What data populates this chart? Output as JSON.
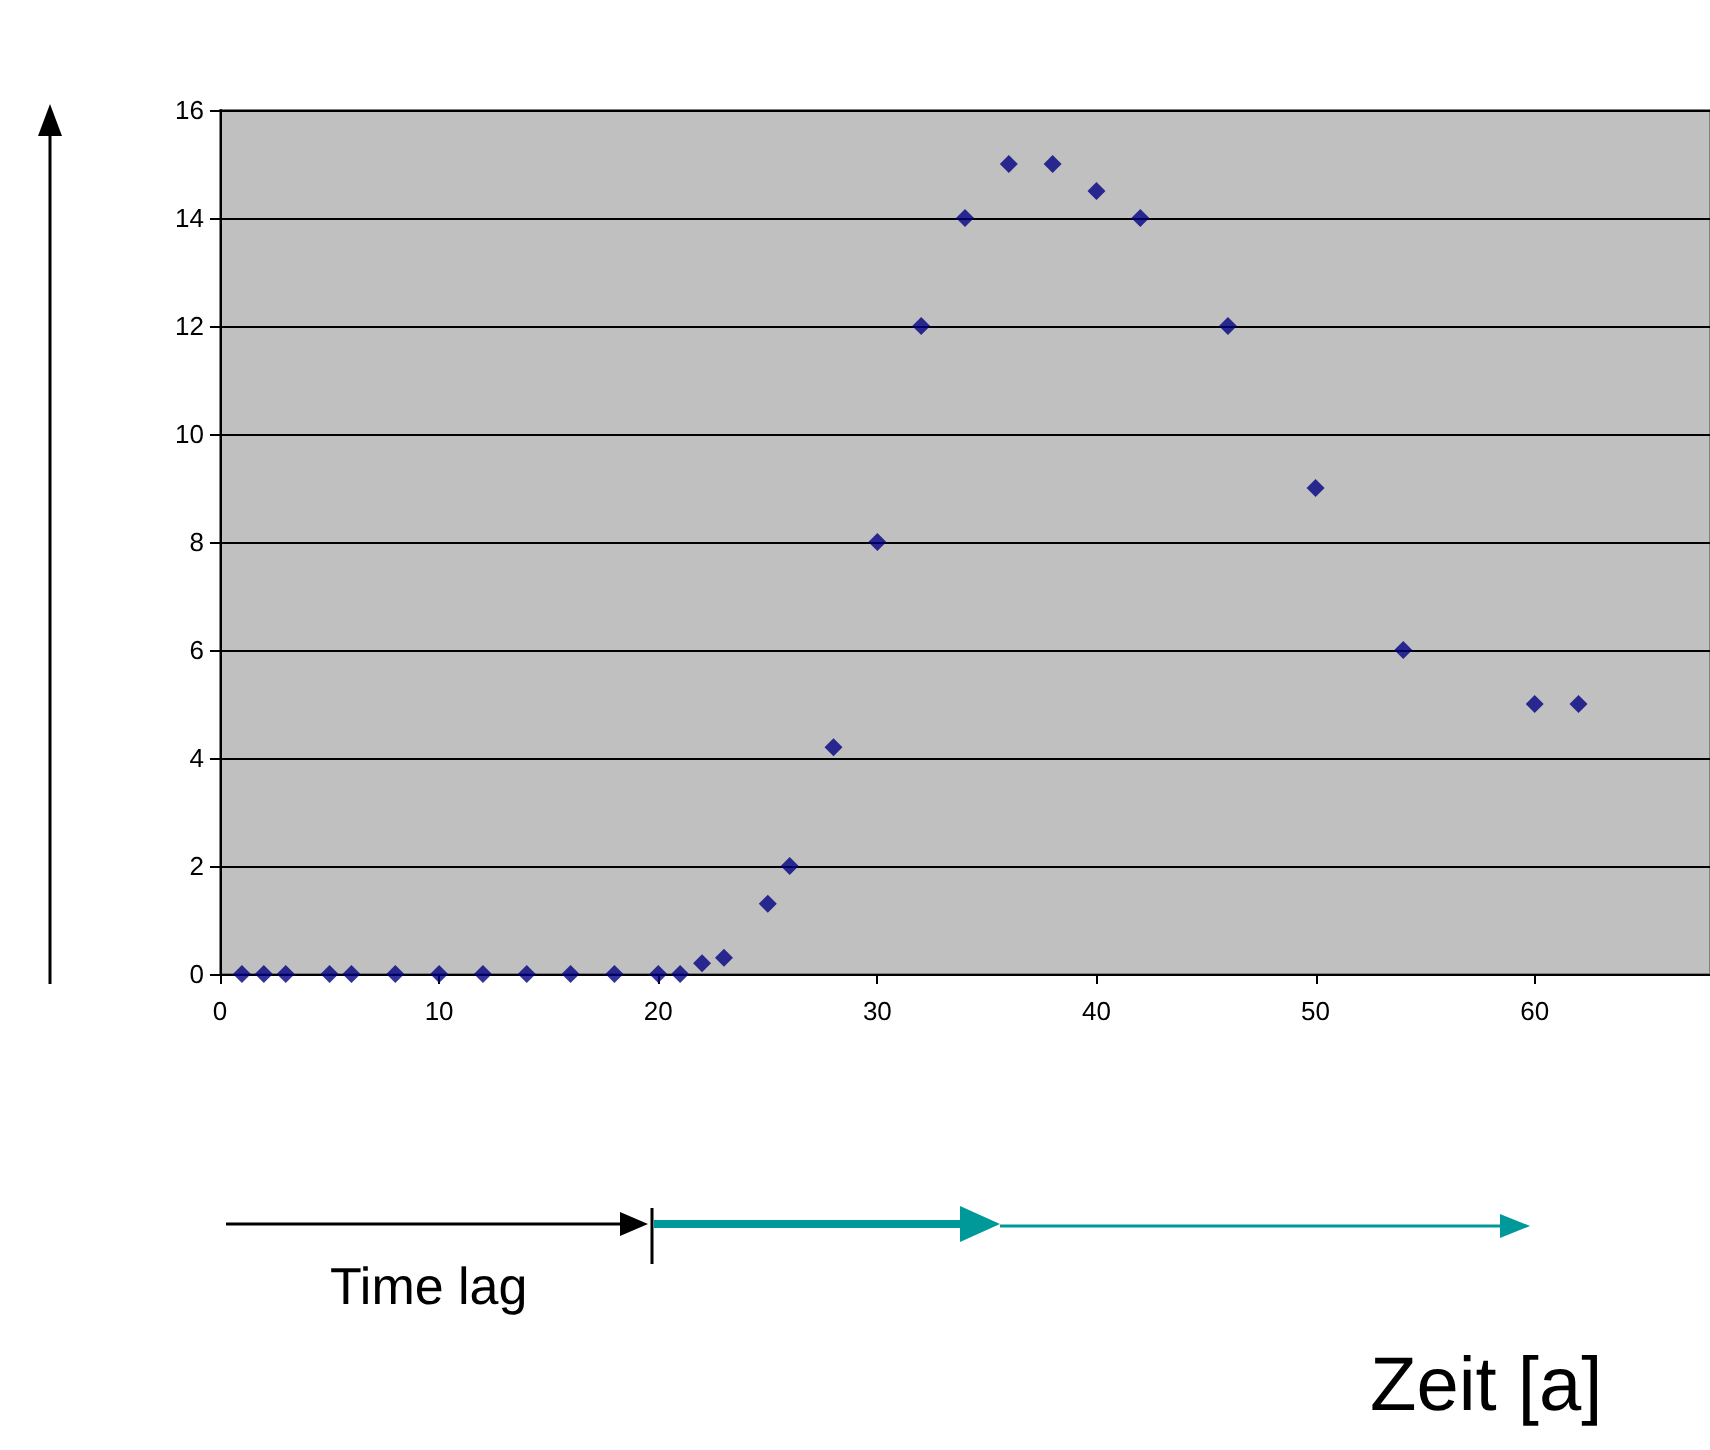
{
  "chart_data": {
    "type": "scatter",
    "xlabel": "Zeit [a]",
    "annotations": [
      "Time lag"
    ],
    "x": [
      1,
      2,
      3,
      5,
      6,
      8,
      10,
      12,
      14,
      16,
      18,
      20,
      21,
      22,
      23,
      25,
      26,
      28,
      30,
      32,
      34,
      36,
      38,
      40,
      42,
      46,
      50,
      54,
      60,
      62
    ],
    "series": [
      {
        "color": "#000080",
        "values": [
          0,
          0,
          0,
          0,
          0,
          0,
          0,
          0,
          0,
          0,
          0,
          0,
          0,
          0.2,
          0.3,
          1.3,
          2,
          4.2,
          8,
          12,
          14,
          15,
          15,
          14.5,
          14,
          12,
          9,
          6,
          5,
          5
        ]
      }
    ],
    "xlim": [
      0,
      68
    ],
    "xticks": [
      0,
      10,
      20,
      30,
      40,
      50,
      60
    ],
    "ylim": [
      0,
      16
    ],
    "yticks": [
      0,
      2,
      4,
      6,
      8,
      10,
      12,
      14,
      16
    ],
    "grid": "y",
    "marker": "diamond"
  }
}
